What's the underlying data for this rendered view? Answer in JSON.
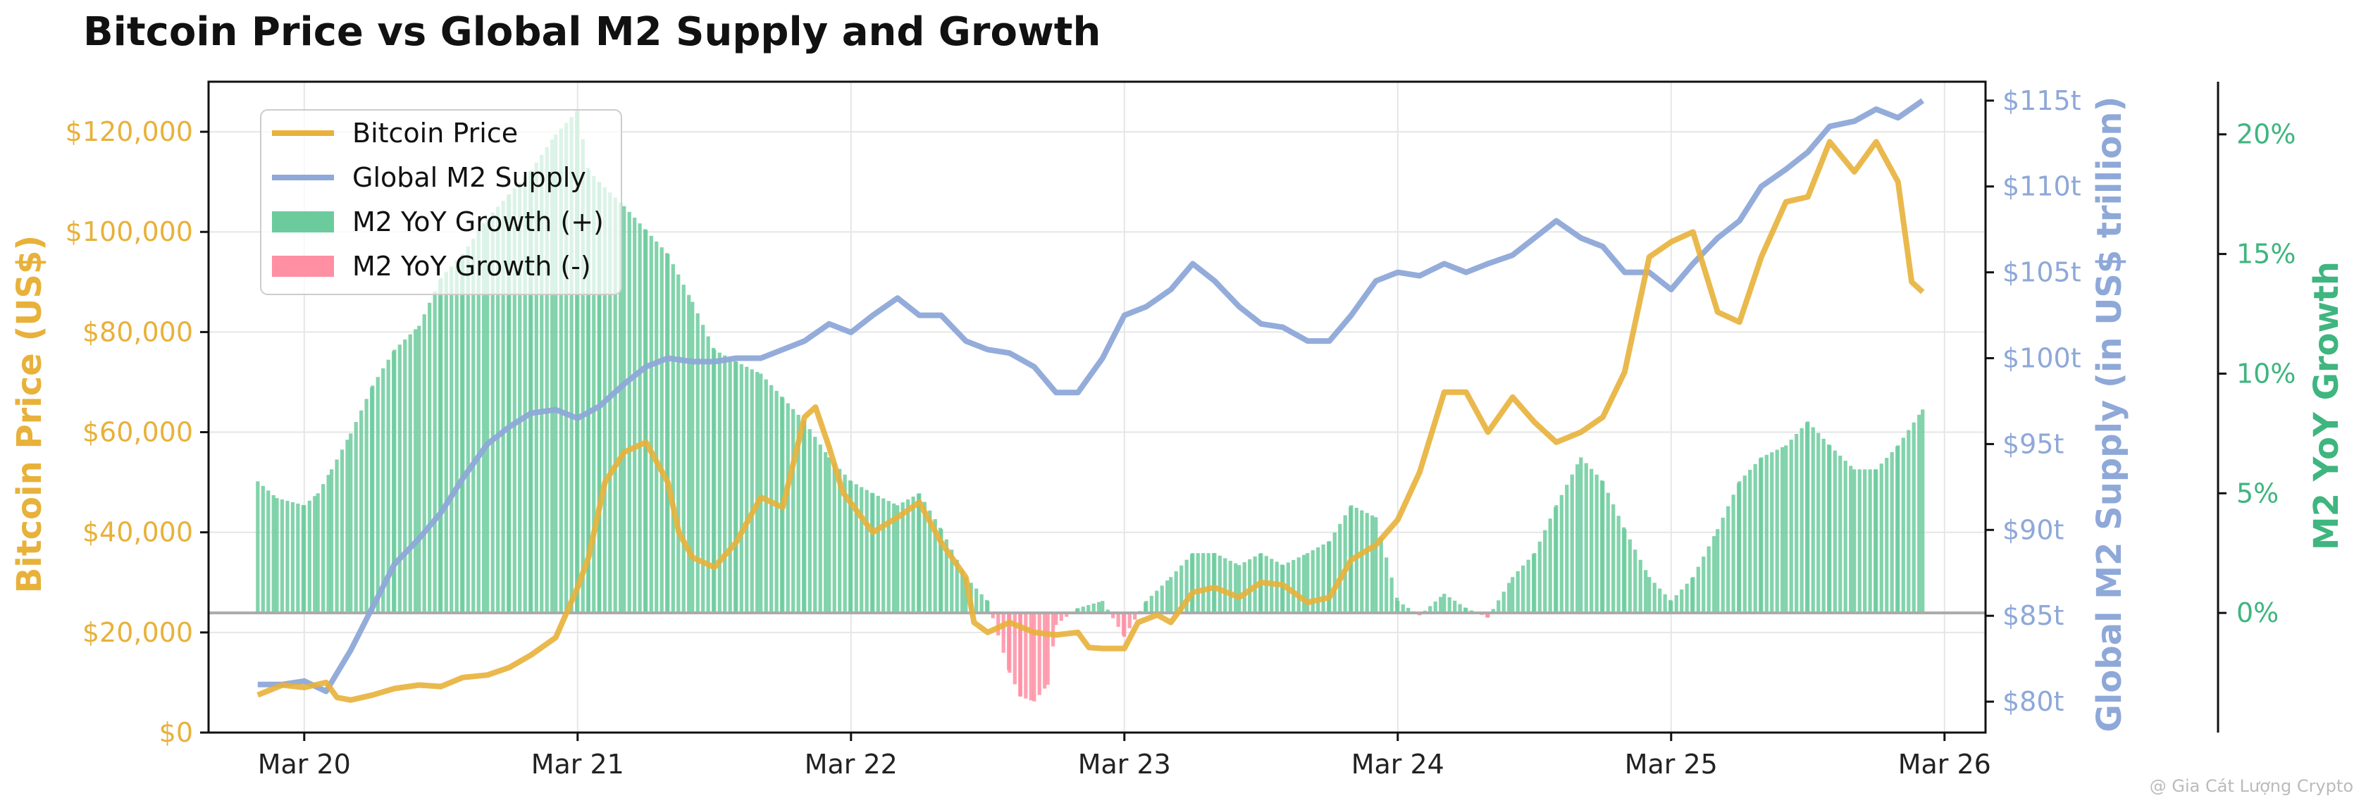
{
  "chart_data": {
    "type": "line+bar",
    "title": "Bitcoin Price vs Global M2 Supply and Growth",
    "ylabel_left": "Bitcoin Price (US$)",
    "ylabel_right": "Global M2 Supply (in US$ trillion)",
    "ylabel_right2": "M2 YoY Growth",
    "watermark": "@ Gia Cát Lượng Crypto",
    "x_ticks": [
      "Mar 20",
      "Mar 21",
      "Mar 22",
      "Mar 23",
      "Mar 24",
      "Mar 25",
      "Mar 26"
    ],
    "x_tick_years": [
      2020,
      2021,
      2022,
      2023,
      2024,
      2025,
      2026
    ],
    "xlim": [
      2019.65,
      2026.15
    ],
    "ylim_left": [
      0,
      130000
    ],
    "y_ticks_left": [
      "$0",
      "$20,000",
      "$40,000",
      "$60,000",
      "$80,000",
      "$100,000",
      "$120,000"
    ],
    "y_tick_values_left": [
      0,
      20000,
      40000,
      60000,
      80000,
      100000,
      120000
    ],
    "ylim_right": [
      78.2,
      116.1
    ],
    "y_ticks_right": [
      "$80t",
      "$85t",
      "$90t",
      "$95t",
      "$100t",
      "$105t",
      "$110t",
      "$115t"
    ],
    "y_tick_values_right": [
      80,
      85,
      90,
      95,
      100,
      105,
      110,
      115
    ],
    "ylim_right2": [
      -5.0,
      22.2
    ],
    "y_ticks_right2": [
      "0%",
      "5%",
      "10%",
      "15%",
      "20%"
    ],
    "y_tick_values_right2": [
      0,
      5,
      10,
      15,
      20
    ],
    "legend": [
      "Bitcoin Price",
      "Global M2 Supply",
      "M2 YoY Growth (+)",
      "M2 YoY Growth (-)"
    ],
    "colors": {
      "bitcoin": "#E8B13A",
      "m2": "#8EA8D8",
      "growth_pos": "#6CCB9C",
      "growth_neg": "#FF8FA3",
      "zero_line": "#AAAAAA",
      "grid": "#E6E6E6"
    },
    "series": [
      {
        "name": "Bitcoin Price",
        "axis": "left",
        "points": [
          [
            2019.83,
            7500
          ],
          [
            2019.92,
            9500
          ],
          [
            2020.0,
            9000
          ],
          [
            2020.08,
            10000
          ],
          [
            2020.12,
            7000
          ],
          [
            2020.17,
            6500
          ],
          [
            2020.25,
            7500
          ],
          [
            2020.33,
            8800
          ],
          [
            2020.42,
            9500
          ],
          [
            2020.5,
            9200
          ],
          [
            2020.58,
            11000
          ],
          [
            2020.67,
            11500
          ],
          [
            2020.75,
            13000
          ],
          [
            2020.83,
            15500
          ],
          [
            2020.92,
            19000
          ],
          [
            2021.0,
            29000
          ],
          [
            2021.04,
            35000
          ],
          [
            2021.1,
            50000
          ],
          [
            2021.17,
            56000
          ],
          [
            2021.25,
            58000
          ],
          [
            2021.33,
            50000
          ],
          [
            2021.37,
            40000
          ],
          [
            2021.42,
            35000
          ],
          [
            2021.5,
            33000
          ],
          [
            2021.58,
            38000
          ],
          [
            2021.67,
            47000
          ],
          [
            2021.75,
            45000
          ],
          [
            2021.83,
            63000
          ],
          [
            2021.87,
            65000
          ],
          [
            2021.92,
            57000
          ],
          [
            2021.97,
            48000
          ],
          [
            2022.08,
            40000
          ],
          [
            2022.17,
            43000
          ],
          [
            2022.25,
            46000
          ],
          [
            2022.33,
            38000
          ],
          [
            2022.42,
            31000
          ],
          [
            2022.45,
            22000
          ],
          [
            2022.5,
            20000
          ],
          [
            2022.58,
            22000
          ],
          [
            2022.67,
            20000
          ],
          [
            2022.75,
            19500
          ],
          [
            2022.83,
            20000
          ],
          [
            2022.87,
            17000
          ],
          [
            2022.92,
            16800
          ],
          [
            2023.0,
            16800
          ],
          [
            2023.05,
            22000
          ],
          [
            2023.12,
            23500
          ],
          [
            2023.17,
            22000
          ],
          [
            2023.25,
            28000
          ],
          [
            2023.33,
            29000
          ],
          [
            2023.42,
            27000
          ],
          [
            2023.5,
            30000
          ],
          [
            2023.58,
            29500
          ],
          [
            2023.67,
            26000
          ],
          [
            2023.75,
            27000
          ],
          [
            2023.83,
            34500
          ],
          [
            2023.92,
            37500
          ],
          [
            2024.0,
            42500
          ],
          [
            2024.08,
            52000
          ],
          [
            2024.17,
            68000
          ],
          [
            2024.25,
            68000
          ],
          [
            2024.33,
            60000
          ],
          [
            2024.42,
            67000
          ],
          [
            2024.5,
            62000
          ],
          [
            2024.58,
            58000
          ],
          [
            2024.67,
            60000
          ],
          [
            2024.75,
            63000
          ],
          [
            2024.83,
            72000
          ],
          [
            2024.92,
            95000
          ],
          [
            2025.0,
            98000
          ],
          [
            2025.08,
            100000
          ],
          [
            2025.17,
            84000
          ],
          [
            2025.25,
            82000
          ],
          [
            2025.33,
            95000
          ],
          [
            2025.42,
            106000
          ],
          [
            2025.5,
            107000
          ],
          [
            2025.58,
            118000
          ],
          [
            2025.67,
            112000
          ],
          [
            2025.75,
            118000
          ],
          [
            2025.83,
            110000
          ],
          [
            2025.88,
            90000
          ],
          [
            2025.92,
            88000
          ]
        ]
      },
      {
        "name": "Global M2 Supply",
        "axis": "right",
        "points": [
          [
            2019.83,
            81
          ],
          [
            2019.92,
            81
          ],
          [
            2020.0,
            81.2
          ],
          [
            2020.08,
            80.6
          ],
          [
            2020.17,
            83
          ],
          [
            2020.25,
            85.5
          ],
          [
            2020.33,
            88
          ],
          [
            2020.42,
            89.5
          ],
          [
            2020.5,
            91
          ],
          [
            2020.58,
            93
          ],
          [
            2020.67,
            95
          ],
          [
            2020.75,
            96
          ],
          [
            2020.83,
            96.8
          ],
          [
            2020.92,
            97
          ],
          [
            2021.0,
            96.5
          ],
          [
            2021.08,
            97.2
          ],
          [
            2021.17,
            98.5
          ],
          [
            2021.25,
            99.5
          ],
          [
            2021.33,
            100
          ],
          [
            2021.42,
            99.8
          ],
          [
            2021.5,
            99.8
          ],
          [
            2021.58,
            100
          ],
          [
            2021.67,
            100
          ],
          [
            2021.75,
            100.5
          ],
          [
            2021.83,
            101
          ],
          [
            2021.92,
            102
          ],
          [
            2022.0,
            101.5
          ],
          [
            2022.08,
            102.5
          ],
          [
            2022.17,
            103.5
          ],
          [
            2022.25,
            102.5
          ],
          [
            2022.33,
            102.5
          ],
          [
            2022.42,
            101
          ],
          [
            2022.5,
            100.5
          ],
          [
            2022.58,
            100.3
          ],
          [
            2022.67,
            99.5
          ],
          [
            2022.75,
            98
          ],
          [
            2022.83,
            98
          ],
          [
            2022.92,
            100
          ],
          [
            2023.0,
            102.5
          ],
          [
            2023.08,
            103
          ],
          [
            2023.17,
            104
          ],
          [
            2023.25,
            105.5
          ],
          [
            2023.33,
            104.5
          ],
          [
            2023.42,
            103
          ],
          [
            2023.5,
            102
          ],
          [
            2023.58,
            101.8
          ],
          [
            2023.67,
            101
          ],
          [
            2023.75,
            101
          ],
          [
            2023.83,
            102.5
          ],
          [
            2023.92,
            104.5
          ],
          [
            2024.0,
            105
          ],
          [
            2024.08,
            104.8
          ],
          [
            2024.17,
            105.5
          ],
          [
            2024.25,
            105
          ],
          [
            2024.33,
            105.5
          ],
          [
            2024.42,
            106
          ],
          [
            2024.5,
            107
          ],
          [
            2024.58,
            108
          ],
          [
            2024.67,
            107
          ],
          [
            2024.75,
            106.5
          ],
          [
            2024.83,
            105
          ],
          [
            2024.92,
            105
          ],
          [
            2025.0,
            104
          ],
          [
            2025.08,
            105.5
          ],
          [
            2025.17,
            107
          ],
          [
            2025.25,
            108
          ],
          [
            2025.33,
            110
          ],
          [
            2025.42,
            111
          ],
          [
            2025.5,
            112
          ],
          [
            2025.58,
            113.5
          ],
          [
            2025.67,
            113.8
          ],
          [
            2025.75,
            114.5
          ],
          [
            2025.83,
            114
          ],
          [
            2025.92,
            115
          ]
        ]
      },
      {
        "name": "M2 YoY Growth",
        "axis": "right2",
        "type": "bar",
        "points": [
          [
            2019.83,
            5.5
          ],
          [
            2019.9,
            4.8
          ],
          [
            2020.0,
            4.5
          ],
          [
            2020.05,
            5.0
          ],
          [
            2020.1,
            6.0
          ],
          [
            2020.17,
            7.5
          ],
          [
            2020.25,
            9.5
          ],
          [
            2020.33,
            11.0
          ],
          [
            2020.42,
            12.0
          ],
          [
            2020.5,
            14.0
          ],
          [
            2020.58,
            15.0
          ],
          [
            2020.67,
            16.5
          ],
          [
            2020.75,
            17.5
          ],
          [
            2020.83,
            18.5
          ],
          [
            2020.92,
            20.0
          ],
          [
            2021.0,
            21.0
          ],
          [
            2021.04,
            18.5
          ],
          [
            2021.08,
            18.0
          ],
          [
            2021.17,
            17.0
          ],
          [
            2021.25,
            16.0
          ],
          [
            2021.33,
            15.0
          ],
          [
            2021.42,
            13.0
          ],
          [
            2021.5,
            11.0
          ],
          [
            2021.58,
            10.5
          ],
          [
            2021.67,
            10.0
          ],
          [
            2021.75,
            9.0
          ],
          [
            2021.83,
            8.0
          ],
          [
            2021.92,
            6.5
          ],
          [
            2022.0,
            5.5
          ],
          [
            2022.08,
            5.0
          ],
          [
            2022.17,
            4.5
          ],
          [
            2022.25,
            5.0
          ],
          [
            2022.33,
            3.5
          ],
          [
            2022.42,
            1.5
          ],
          [
            2022.5,
            0.5
          ],
          [
            2022.58,
            -2.5
          ],
          [
            2022.62,
            -3.5
          ],
          [
            2022.67,
            -3.7
          ],
          [
            2022.72,
            -3.0
          ],
          [
            2022.75,
            -0.5
          ],
          [
            2022.83,
            0.2
          ],
          [
            2022.92,
            0.5
          ],
          [
            2023.0,
            -1.0
          ],
          [
            2023.08,
            0.5
          ],
          [
            2023.17,
            1.5
          ],
          [
            2023.25,
            2.5
          ],
          [
            2023.33,
            2.5
          ],
          [
            2023.42,
            2.0
          ],
          [
            2023.5,
            2.5
          ],
          [
            2023.58,
            2.0
          ],
          [
            2023.67,
            2.5
          ],
          [
            2023.75,
            3.0
          ],
          [
            2023.83,
            4.5
          ],
          [
            2023.92,
            4.0
          ],
          [
            2024.0,
            0.5
          ],
          [
            2024.08,
            -0.1
          ],
          [
            2024.17,
            0.8
          ],
          [
            2024.25,
            0.2
          ],
          [
            2024.33,
            -0.2
          ],
          [
            2024.42,
            1.5
          ],
          [
            2024.5,
            2.5
          ],
          [
            2024.58,
            4.5
          ],
          [
            2024.67,
            6.5
          ],
          [
            2024.75,
            5.5
          ],
          [
            2024.83,
            3.5
          ],
          [
            2024.92,
            1.5
          ],
          [
            2025.0,
            0.5
          ],
          [
            2025.08,
            1.5
          ],
          [
            2025.17,
            3.5
          ],
          [
            2025.25,
            5.5
          ],
          [
            2025.33,
            6.5
          ],
          [
            2025.42,
            7.0
          ],
          [
            2025.5,
            8.0
          ],
          [
            2025.58,
            7.0
          ],
          [
            2025.67,
            6.0
          ],
          [
            2025.75,
            6.0
          ],
          [
            2025.83,
            7.0
          ],
          [
            2025.92,
            8.5
          ]
        ]
      }
    ]
  }
}
